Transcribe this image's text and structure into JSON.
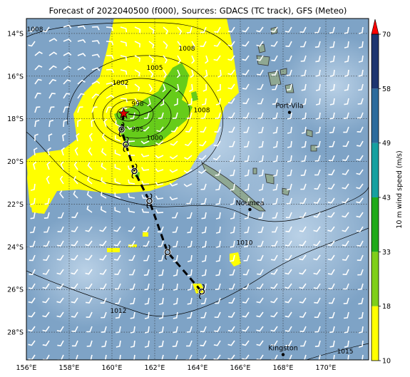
{
  "title": "Forecast of 2022040500 (f000), Sources: GDACS (TC track), GFS (Meteo)",
  "map": {
    "lon_range": [
      156,
      172
    ],
    "lat_range": [
      -29.3,
      -13.3
    ],
    "lon_ticks": [
      156,
      158,
      160,
      162,
      164,
      166,
      168,
      170
    ],
    "lon_tick_labels": [
      "156°E",
      "158°E",
      "160°E",
      "162°E",
      "164°E",
      "166°E",
      "168°E",
      "170°E"
    ],
    "lat_ticks": [
      -14,
      -16,
      -18,
      -20,
      -22,
      -24,
      -26,
      -28
    ],
    "lat_tick_labels": [
      "14°S",
      "16°S",
      "18°S",
      "20°S",
      "22°S",
      "24°S",
      "26°S",
      "28°S"
    ],
    "ocean_color": "#7ea3c6",
    "land_color": "#8fa893"
  },
  "cities": [
    {
      "name": "Port-Vila",
      "lon": 168.3,
      "lat": -17.7
    },
    {
      "name": "Noumea",
      "lon": 166.45,
      "lat": -22.25
    },
    {
      "name": "Kingston",
      "lon": 168.0,
      "lat": -29.05
    }
  ],
  "isobars": [
    {
      "label": "1008",
      "lon": 156.4,
      "lat": -13.9
    },
    {
      "label": "1008",
      "lon": 163.5,
      "lat": -14.8
    },
    {
      "label": "1005",
      "lon": 162.0,
      "lat": -15.7
    },
    {
      "label": "1002",
      "lon": 160.4,
      "lat": -16.4
    },
    {
      "label": "998",
      "lon": 161.2,
      "lat": -17.4
    },
    {
      "label": "1008",
      "lon": 164.2,
      "lat": -17.7
    },
    {
      "label": "995",
      "lon": 161.2,
      "lat": -18.6
    },
    {
      "label": "1000",
      "lon": 162.0,
      "lat": -19.0
    },
    {
      "label": "1010",
      "lon": 166.2,
      "lat": -23.9
    },
    {
      "label": "1012",
      "lon": 160.3,
      "lat": -27.1
    },
    {
      "label": "1015",
      "lon": 170.9,
      "lat": -29.0
    }
  ],
  "track": {
    "current": {
      "lon": 160.55,
      "lat": -17.75
    },
    "positions": [
      {
        "lon": 160.45,
        "lat": -18.5
      },
      {
        "lon": 160.65,
        "lat": -19.2
      },
      {
        "lon": 161.05,
        "lat": -20.45
      },
      {
        "lon": 161.75,
        "lat": -21.85
      },
      {
        "lon": 162.6,
        "lat": -24.25
      },
      {
        "lon": 164.2,
        "lat": -26.1
      }
    ]
  },
  "colorbar": {
    "label": "10 m wind speed (m/s)",
    "ticks": [
      "10",
      "18",
      "33",
      "43",
      "49",
      "58",
      "70"
    ],
    "colors": [
      "#ffff00",
      "#7fcf1a",
      "#1faa1a",
      "#16a0a0",
      "#2c6b9c",
      "#1d3570"
    ],
    "arrow_color": "#ff0000"
  }
}
